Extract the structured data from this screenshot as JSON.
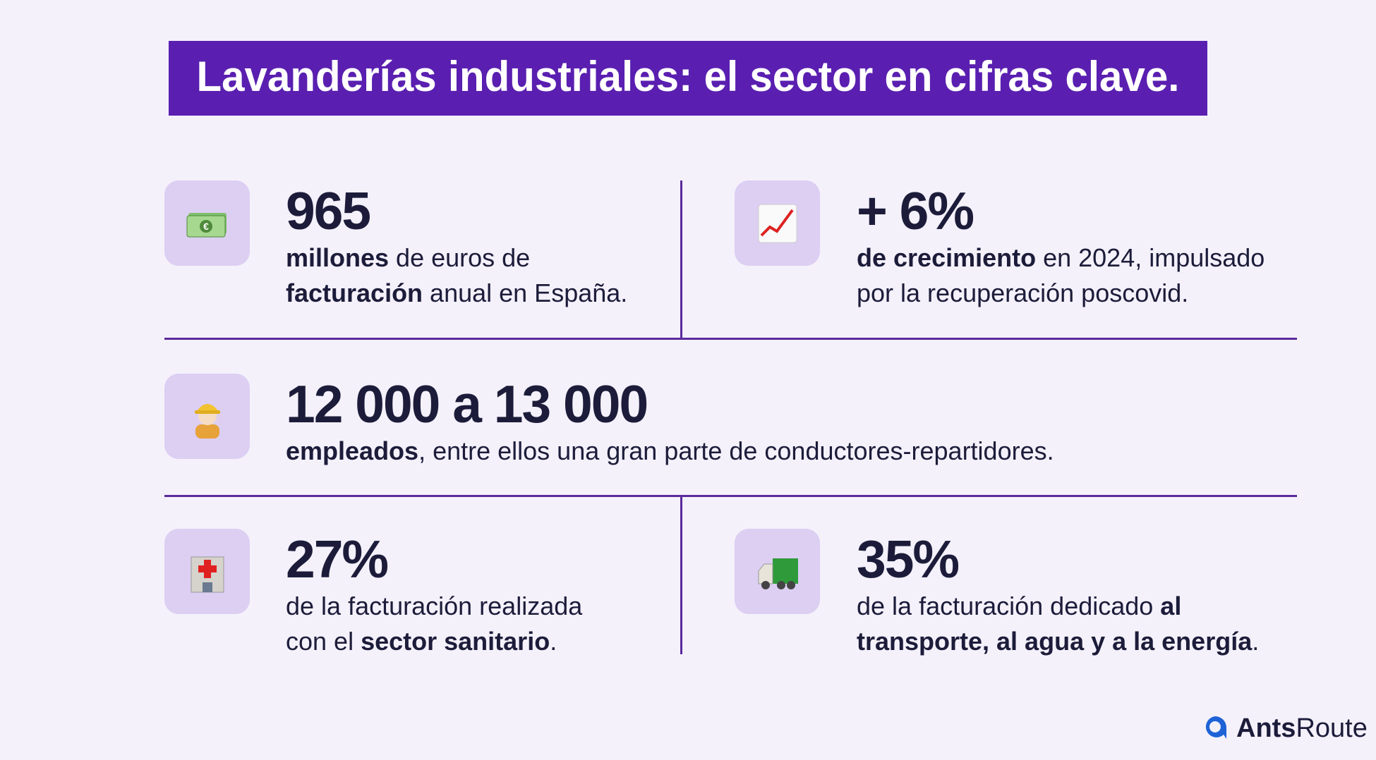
{
  "title": "Lavanderías industriales: el sector en cifras clave.",
  "stats": [
    {
      "figure": "965",
      "description": [
        [
          {
            "text": "millones",
            "bold": true
          },
          {
            "text": " de euros de",
            "bold": false
          }
        ],
        [
          {
            "text": "facturación",
            "bold": true
          },
          {
            "text": " anual en España.",
            "bold": false
          }
        ]
      ]
    },
    {
      "figure": "+ 6%",
      "description": [
        [
          {
            "text": "de crecimiento",
            "bold": true
          },
          {
            "text": " en 2024, impulsado",
            "bold": false
          }
        ],
        [
          {
            "text": "por la recuperación poscovid.",
            "bold": false
          }
        ]
      ]
    },
    {
      "figure": "12 000 a 13 000",
      "description": [
        [
          {
            "text": "empleados",
            "bold": true
          },
          {
            "text": ", entre ellos una gran parte de conductores-repartidores.",
            "bold": false
          }
        ]
      ]
    },
    {
      "figure": "27%",
      "description": [
        [
          {
            "text": "de la facturación realizada",
            "bold": false
          }
        ],
        [
          {
            "text": "con el ",
            "bold": false
          },
          {
            "text": "sector sanitario",
            "bold": true
          },
          {
            "text": ".",
            "bold": false
          }
        ]
      ]
    },
    {
      "figure": "35%",
      "description": [
        [
          {
            "text": "de la facturación dedicado ",
            "bold": false
          },
          {
            "text": "al",
            "bold": true
          }
        ],
        [
          {
            "text": "transporte, al agua y a la energía",
            "bold": true
          },
          {
            "text": ".",
            "bold": false
          }
        ]
      ]
    }
  ],
  "logo": {
    "parts": [
      "Ants",
      "Route"
    ]
  }
}
